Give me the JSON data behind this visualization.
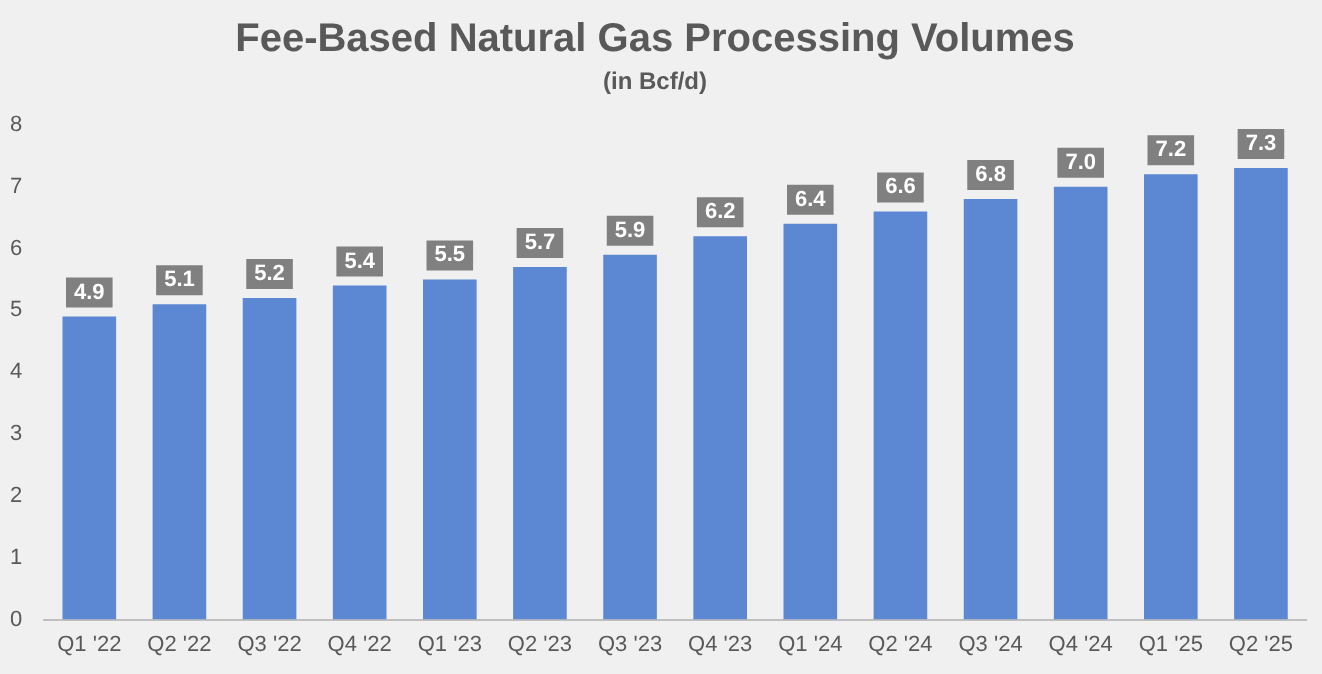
{
  "chart_data": {
    "type": "bar",
    "title": "Fee-Based Natural Gas Processing Volumes",
    "subtitle": "(in Bcf/d)",
    "categories": [
      "Q1 '22",
      "Q2 '22",
      "Q3 '22",
      "Q4 '22",
      "Q1 '23",
      "Q2 '23",
      "Q3 '23",
      "Q4 '23",
      "Q1 '24",
      "Q2 '24",
      "Q3 '24",
      "Q4 '24",
      "Q1 '25",
      "Q2 '25"
    ],
    "values": [
      4.9,
      5.1,
      5.2,
      5.4,
      5.5,
      5.7,
      5.9,
      6.2,
      6.4,
      6.6,
      6.8,
      7.0,
      7.2,
      7.3
    ],
    "value_labels": [
      "4.9",
      "5.1",
      "5.2",
      "5.4",
      "5.5",
      "5.7",
      "5.9",
      "6.2",
      "6.4",
      "6.6",
      "6.8",
      "7.0",
      "7.2",
      "7.3"
    ],
    "color": "#5b87d3",
    "ylim": [
      0,
      8
    ],
    "yticks": [
      0,
      1,
      2,
      3,
      4,
      5,
      6,
      7,
      8
    ],
    "grid": false,
    "legend": false
  }
}
